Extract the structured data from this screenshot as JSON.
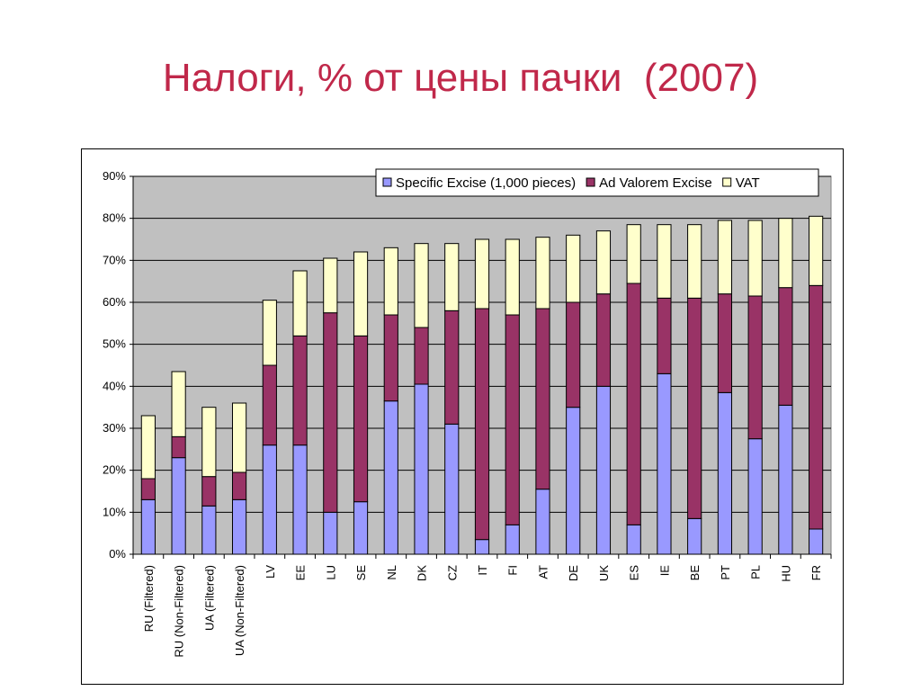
{
  "title": "Налоги, % от цены пачки  (2007)",
  "chart_data": {
    "type": "bar",
    "stacked": true,
    "title": "Налоги, % от цены пачки  (2007)",
    "categories": [
      "RU (Filtered)",
      "RU (Non-Filtered)",
      "UA (Filtered)",
      "UA (Non-Filtered)",
      "LV",
      "EE",
      "LU",
      "SE",
      "NL",
      "DK",
      "CZ",
      "IT",
      "FI",
      "AT",
      "DE",
      "UK",
      "ES",
      "IE",
      "BE",
      "PT",
      "PL",
      "HU",
      "FR"
    ],
    "series": [
      {
        "name": "Specific Excise (1,000 pieces)",
        "color": "#9999ff",
        "values": [
          13,
          23,
          11.5,
          13,
          26,
          26,
          10,
          12.5,
          36.5,
          40.5,
          31,
          3.5,
          7,
          15.5,
          35,
          40,
          7,
          43,
          8.5,
          38.5,
          27.5,
          35.5,
          6
        ]
      },
      {
        "name": "Ad Valorem Excise",
        "color": "#993366",
        "values": [
          5,
          5,
          7,
          6.5,
          19,
          26,
          47.5,
          39.5,
          20.5,
          13.5,
          27,
          55,
          50,
          43,
          25,
          22,
          57.5,
          18,
          52.5,
          23.5,
          34,
          28,
          58
        ]
      },
      {
        "name": "VAT",
        "color": "#ffffcc",
        "values": [
          15,
          15.5,
          16.5,
          16.5,
          15.5,
          15.5,
          13,
          20,
          16,
          20,
          16,
          16.5,
          18,
          17,
          16,
          15,
          14,
          17.5,
          17.5,
          17.5,
          18,
          16.5,
          16.5
        ]
      }
    ],
    "ylim": [
      0,
      90
    ],
    "yticks": [
      "0%",
      "10%",
      "20%",
      "30%",
      "40%",
      "50%",
      "60%",
      "70%",
      "80%",
      "90%"
    ],
    "legend_position": "top-right",
    "grid": true,
    "plot_background": "#c0c0c0"
  }
}
